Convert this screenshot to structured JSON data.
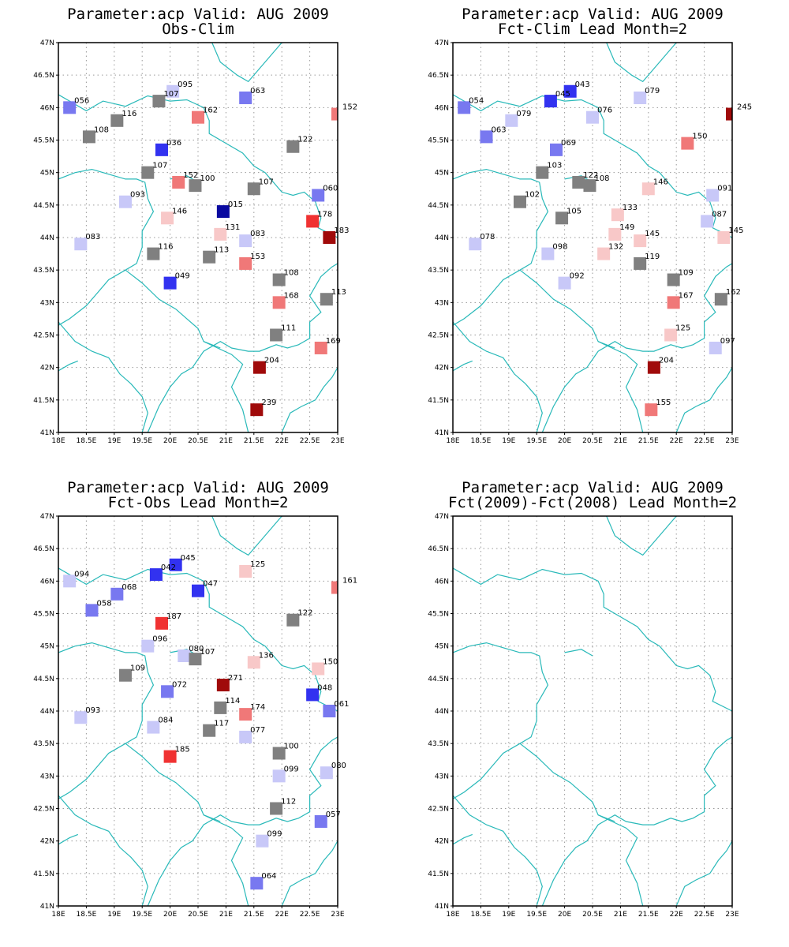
{
  "panels": [
    {
      "id": "obs-clim",
      "title_line1": "Parameter:acp Valid: AUG 2009",
      "title_line2": "Obs-Clim",
      "stations": [
        {
          "lon": 18.2,
          "lat": 46.0,
          "label": "056",
          "color": "#7878f0"
        },
        {
          "lon": 20.05,
          "lat": 46.25,
          "label": "095",
          "color": "#c8c8f8"
        },
        {
          "lon": 19.8,
          "lat": 46.1,
          "label": "107",
          "color": "#808080"
        },
        {
          "lon": 21.35,
          "lat": 46.15,
          "label": "063",
          "color": "#7878f0"
        },
        {
          "lon": 23.0,
          "lat": 45.9,
          "label": "152",
          "color": "#f07878"
        },
        {
          "lon": 19.05,
          "lat": 45.8,
          "label": "116",
          "color": "#808080"
        },
        {
          "lon": 20.5,
          "lat": 45.85,
          "label": "162",
          "color": "#f07878"
        },
        {
          "lon": 18.55,
          "lat": 45.55,
          "label": "108",
          "color": "#808080"
        },
        {
          "lon": 22.2,
          "lat": 45.4,
          "label": "122",
          "color": "#808080"
        },
        {
          "lon": 19.85,
          "lat": 45.35,
          "label": "036",
          "color": "#3232f0"
        },
        {
          "lon": 19.6,
          "lat": 45.0,
          "label": "107",
          "color": "#808080"
        },
        {
          "lon": 20.15,
          "lat": 44.85,
          "label": "152",
          "color": "#f07878"
        },
        {
          "lon": 20.45,
          "lat": 44.8,
          "label": "100",
          "color": "#808080"
        },
        {
          "lon": 21.5,
          "lat": 44.75,
          "label": "107",
          "color": "#808080"
        },
        {
          "lon": 22.65,
          "lat": 44.65,
          "label": "060",
          "color": "#7878f0"
        },
        {
          "lon": 19.2,
          "lat": 44.55,
          "label": "093",
          "color": "#c8c8f8"
        },
        {
          "lon": 20.95,
          "lat": 44.4,
          "label": "015",
          "color": "#0a0aa0"
        },
        {
          "lon": 19.95,
          "lat": 44.3,
          "label": "146",
          "color": "#f8c8c8"
        },
        {
          "lon": 22.55,
          "lat": 44.25,
          "label": "178",
          "color": "#f03232"
        },
        {
          "lon": 20.9,
          "lat": 44.05,
          "label": "131",
          "color": "#f8c8c8"
        },
        {
          "lon": 21.35,
          "lat": 43.95,
          "label": "083",
          "color": "#c8c8f8"
        },
        {
          "lon": 22.85,
          "lat": 44.0,
          "label": "183",
          "color": "#a00a0a"
        },
        {
          "lon": 18.4,
          "lat": 43.9,
          "label": "083",
          "color": "#c8c8f8"
        },
        {
          "lon": 19.7,
          "lat": 43.75,
          "label": "116",
          "color": "#808080"
        },
        {
          "lon": 20.7,
          "lat": 43.7,
          "label": "113",
          "color": "#808080"
        },
        {
          "lon": 21.35,
          "lat": 43.6,
          "label": "153",
          "color": "#f07878"
        },
        {
          "lon": 21.95,
          "lat": 43.35,
          "label": "108",
          "color": "#808080"
        },
        {
          "lon": 20.0,
          "lat": 43.3,
          "label": "049",
          "color": "#3232f0"
        },
        {
          "lon": 21.95,
          "lat": 43.0,
          "label": "168",
          "color": "#f07878"
        },
        {
          "lon": 22.8,
          "lat": 43.05,
          "label": "113",
          "color": "#808080"
        },
        {
          "lon": 21.9,
          "lat": 42.5,
          "label": "111",
          "color": "#808080"
        },
        {
          "lon": 22.7,
          "lat": 42.3,
          "label": "169",
          "color": "#f07878"
        },
        {
          "lon": 21.6,
          "lat": 42.0,
          "label": "204",
          "color": "#a00a0a"
        },
        {
          "lon": 21.55,
          "lat": 41.35,
          "label": "239",
          "color": "#a00a0a"
        }
      ]
    },
    {
      "id": "fct-clim",
      "title_line1": "Parameter:acp Valid: AUG 2009",
      "title_line2": "Fct-Clim Lead Month=2",
      "stations": [
        {
          "lon": 18.2,
          "lat": 46.0,
          "label": "054",
          "color": "#7878f0"
        },
        {
          "lon": 20.1,
          "lat": 46.25,
          "label": "043",
          "color": "#3232f0"
        },
        {
          "lon": 19.75,
          "lat": 46.1,
          "label": "045",
          "color": "#3232f0"
        },
        {
          "lon": 21.35,
          "lat": 46.15,
          "label": "079",
          "color": "#c8c8f8"
        },
        {
          "lon": 23.0,
          "lat": 45.9,
          "label": "245",
          "color": "#a00a0a"
        },
        {
          "lon": 19.05,
          "lat": 45.8,
          "label": "079",
          "color": "#c8c8f8"
        },
        {
          "lon": 20.5,
          "lat": 45.85,
          "label": "076",
          "color": "#c8c8f8"
        },
        {
          "lon": 18.6,
          "lat": 45.55,
          "label": "063",
          "color": "#7878f0"
        },
        {
          "lon": 22.2,
          "lat": 45.45,
          "label": "150",
          "color": "#f07878"
        },
        {
          "lon": 19.85,
          "lat": 45.35,
          "label": "069",
          "color": "#7878f0"
        },
        {
          "lon": 19.6,
          "lat": 45.0,
          "label": "103",
          "color": "#808080"
        },
        {
          "lon": 20.25,
          "lat": 44.85,
          "label": "122",
          "color": "#808080"
        },
        {
          "lon": 20.45,
          "lat": 44.8,
          "label": "108",
          "color": "#808080"
        },
        {
          "lon": 21.5,
          "lat": 44.75,
          "label": "146",
          "color": "#f8c8c8"
        },
        {
          "lon": 22.65,
          "lat": 44.65,
          "label": "091",
          "color": "#c8c8f8"
        },
        {
          "lon": 19.2,
          "lat": 44.55,
          "label": "102",
          "color": "#808080"
        },
        {
          "lon": 20.95,
          "lat": 44.35,
          "label": "133",
          "color": "#f8c8c8"
        },
        {
          "lon": 19.95,
          "lat": 44.3,
          "label": "105",
          "color": "#808080"
        },
        {
          "lon": 22.55,
          "lat": 44.25,
          "label": "087",
          "color": "#c8c8f8"
        },
        {
          "lon": 20.9,
          "lat": 44.05,
          "label": "149",
          "color": "#f8c8c8"
        },
        {
          "lon": 21.35,
          "lat": 43.95,
          "label": "145",
          "color": "#f8c8c8"
        },
        {
          "lon": 22.85,
          "lat": 44.0,
          "label": "145",
          "color": "#f8c8c8"
        },
        {
          "lon": 18.4,
          "lat": 43.9,
          "label": "078",
          "color": "#c8c8f8"
        },
        {
          "lon": 19.7,
          "lat": 43.75,
          "label": "098",
          "color": "#c8c8f8"
        },
        {
          "lon": 20.7,
          "lat": 43.75,
          "label": "132",
          "color": "#f8c8c8"
        },
        {
          "lon": 21.35,
          "lat": 43.6,
          "label": "119",
          "color": "#808080"
        },
        {
          "lon": 21.95,
          "lat": 43.35,
          "label": "109",
          "color": "#808080"
        },
        {
          "lon": 20.0,
          "lat": 43.3,
          "label": "092",
          "color": "#c8c8f8"
        },
        {
          "lon": 21.95,
          "lat": 43.0,
          "label": "167",
          "color": "#f07878"
        },
        {
          "lon": 22.8,
          "lat": 43.05,
          "label": "162",
          "color": "#808080"
        },
        {
          "lon": 21.9,
          "lat": 42.5,
          "label": "125",
          "color": "#f8c8c8"
        },
        {
          "lon": 22.7,
          "lat": 42.3,
          "label": "097",
          "color": "#c8c8f8"
        },
        {
          "lon": 21.6,
          "lat": 42.0,
          "label": "204",
          "color": "#a00a0a"
        },
        {
          "lon": 21.55,
          "lat": 41.35,
          "label": "155",
          "color": "#f07878"
        }
      ]
    },
    {
      "id": "fct-obs",
      "title_line1": "Parameter:acp Valid: AUG 2009",
      "title_line2": "Fct-Obs Lead Month=2",
      "stations": [
        {
          "lon": 18.2,
          "lat": 46.0,
          "label": "094",
          "color": "#c8c8f8"
        },
        {
          "lon": 20.1,
          "lat": 46.25,
          "label": "045",
          "color": "#3232f0"
        },
        {
          "lon": 19.75,
          "lat": 46.1,
          "label": "042",
          "color": "#3232f0"
        },
        {
          "lon": 21.35,
          "lat": 46.15,
          "label": "125",
          "color": "#f8c8c8"
        },
        {
          "lon": 23.0,
          "lat": 45.9,
          "label": "161",
          "color": "#f07878"
        },
        {
          "lon": 19.05,
          "lat": 45.8,
          "label": "068",
          "color": "#7878f0"
        },
        {
          "lon": 20.5,
          "lat": 45.85,
          "label": "047",
          "color": "#3232f0"
        },
        {
          "lon": 18.6,
          "lat": 45.55,
          "label": "058",
          "color": "#7878f0"
        },
        {
          "lon": 22.2,
          "lat": 45.4,
          "label": "122",
          "color": "#808080"
        },
        {
          "lon": 19.85,
          "lat": 45.35,
          "label": "187",
          "color": "#f03232"
        },
        {
          "lon": 19.6,
          "lat": 45.0,
          "label": "096",
          "color": "#c8c8f8"
        },
        {
          "lon": 20.25,
          "lat": 44.85,
          "label": "080",
          "color": "#c8c8f8"
        },
        {
          "lon": 20.45,
          "lat": 44.8,
          "label": "107",
          "color": "#808080"
        },
        {
          "lon": 21.5,
          "lat": 44.75,
          "label": "136",
          "color": "#f8c8c8"
        },
        {
          "lon": 22.65,
          "lat": 44.65,
          "label": "150",
          "color": "#f8c8c8"
        },
        {
          "lon": 19.2,
          "lat": 44.55,
          "label": "109",
          "color": "#808080"
        },
        {
          "lon": 20.95,
          "lat": 44.4,
          "label": "271",
          "color": "#a00a0a"
        },
        {
          "lon": 19.95,
          "lat": 44.3,
          "label": "072",
          "color": "#7878f0"
        },
        {
          "lon": 22.55,
          "lat": 44.25,
          "label": "048",
          "color": "#3232f0"
        },
        {
          "lon": 20.9,
          "lat": 44.05,
          "label": "114",
          "color": "#808080"
        },
        {
          "lon": 21.35,
          "lat": 43.95,
          "label": "174",
          "color": "#f07878"
        },
        {
          "lon": 22.85,
          "lat": 44.0,
          "label": "061",
          "color": "#7878f0"
        },
        {
          "lon": 18.4,
          "lat": 43.9,
          "label": "093",
          "color": "#c8c8f8"
        },
        {
          "lon": 19.7,
          "lat": 43.75,
          "label": "084",
          "color": "#c8c8f8"
        },
        {
          "lon": 20.7,
          "lat": 43.7,
          "label": "117",
          "color": "#808080"
        },
        {
          "lon": 21.35,
          "lat": 43.6,
          "label": "077",
          "color": "#c8c8f8"
        },
        {
          "lon": 21.95,
          "lat": 43.35,
          "label": "100",
          "color": "#808080"
        },
        {
          "lon": 20.0,
          "lat": 43.3,
          "label": "185",
          "color": "#f03232"
        },
        {
          "lon": 21.95,
          "lat": 43.0,
          "label": "099",
          "color": "#c8c8f8"
        },
        {
          "lon": 22.8,
          "lat": 43.05,
          "label": "080",
          "color": "#c8c8f8"
        },
        {
          "lon": 21.9,
          "lat": 42.5,
          "label": "112",
          "color": "#808080"
        },
        {
          "lon": 22.7,
          "lat": 42.3,
          "label": "057",
          "color": "#7878f0"
        },
        {
          "lon": 21.65,
          "lat": 42.0,
          "label": "099",
          "color": "#c8c8f8"
        },
        {
          "lon": 21.55,
          "lat": 41.35,
          "label": "064",
          "color": "#7878f0"
        }
      ]
    },
    {
      "id": "fct-fct",
      "title_line1": "Parameter:acp Valid: AUG 2009",
      "title_line2": "Fct(2009)-Fct(2008) Lead Month=2",
      "stations": []
    }
  ],
  "axes": {
    "lon_ticks": [
      "18E",
      "18.5E",
      "19E",
      "19.5E",
      "20E",
      "20.5E",
      "21E",
      "21.5E",
      "22E",
      "22.5E",
      "23E"
    ],
    "lat_ticks": [
      "41N",
      "41.5N",
      "42N",
      "42.5N",
      "43N",
      "43.5N",
      "44N",
      "44.5N",
      "45N",
      "45.5N",
      "46N",
      "46.5N",
      "47N"
    ],
    "lon_range": [
      18,
      23
    ],
    "lat_range": [
      41,
      47
    ],
    "grid": true
  },
  "colors": {
    "coastline": "#29b9b9",
    "grid": "#9a9a9a",
    "frame": "#000000"
  }
}
